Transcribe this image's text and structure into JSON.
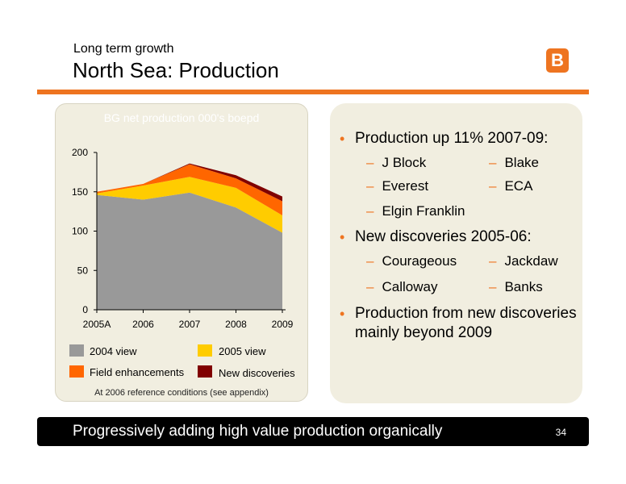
{
  "header": {
    "subtitle": "Long term growth",
    "title": "North Sea: Production",
    "logo_text": "B",
    "accent_color": "#ee7420"
  },
  "chart_data": {
    "type": "area",
    "title": "BG net production 000's boepd",
    "categories": [
      "2005A",
      "2006",
      "2007",
      "2008",
      "2009"
    ],
    "ylim": [
      0,
      200
    ],
    "yticks": [
      0,
      50,
      100,
      150,
      200
    ],
    "stacked": true,
    "series": [
      {
        "name": "2004 view",
        "color": "#999999",
        "values": [
          146,
          140,
          149,
          130,
          98
        ]
      },
      {
        "name": "2005 view",
        "color": "#ffcc00",
        "values": [
          2,
          18,
          20,
          25,
          22
        ]
      },
      {
        "name": "Field enhancements",
        "color": "#ff6600",
        "values": [
          2,
          2,
          16,
          12,
          18
        ]
      },
      {
        "name": "New discoveries",
        "color": "#800000",
        "values": [
          0,
          0,
          1,
          4,
          6
        ]
      }
    ],
    "footnote": "At 2006 reference conditions (see appendix)"
  },
  "right_panel": {
    "bullets": [
      {
        "text": "Production up 11% 2007-09:"
      },
      {
        "text": "New discoveries 2005-06:"
      },
      {
        "text": "Production from new discoveries mainly beyond 2009"
      }
    ],
    "group1": [
      "J Block",
      "Blake",
      "Everest",
      "ECA",
      "Elgin Franklin"
    ],
    "group2": [
      "Courageous",
      "Jackdaw",
      "Calloway",
      "Banks"
    ],
    "bullet_dot": "•",
    "dash": "–"
  },
  "footer": {
    "tagline": "Progressively adding high value production organically",
    "page_number": "34"
  }
}
